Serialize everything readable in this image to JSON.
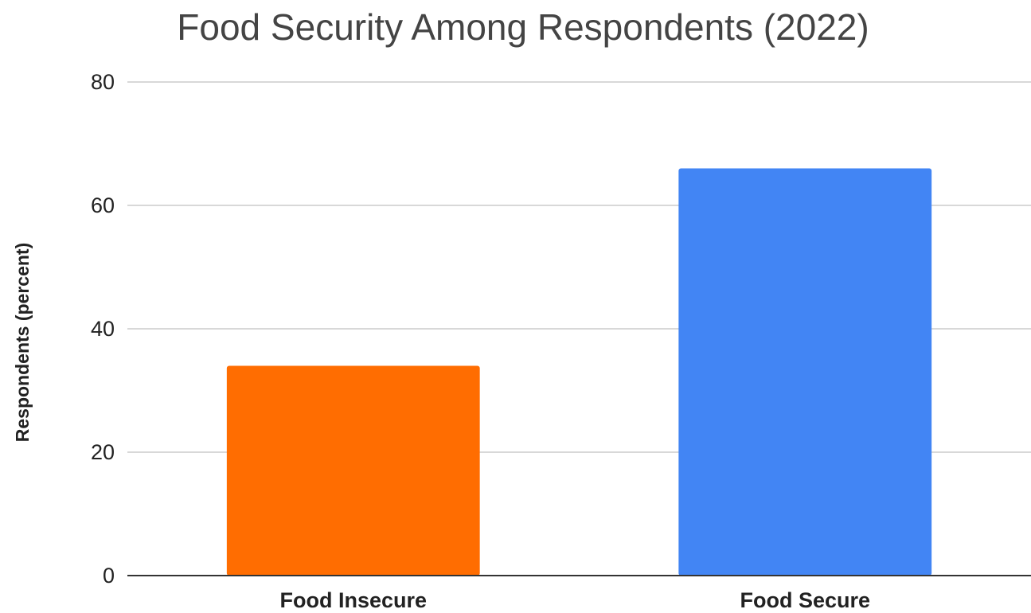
{
  "chart_data": {
    "type": "bar",
    "title": "Food Security Among Respondents (2022)",
    "xlabel": "",
    "ylabel": "Respondents (percent)",
    "categories": [
      "Food Insecure",
      "Food Secure"
    ],
    "values": [
      34,
      66
    ],
    "colors": [
      "#ff6d01",
      "#4285f4"
    ],
    "ylim": [
      0,
      80
    ],
    "yticks": [
      "0",
      "20",
      "40",
      "60",
      "80"
    ],
    "grid": true,
    "legend": "none"
  }
}
